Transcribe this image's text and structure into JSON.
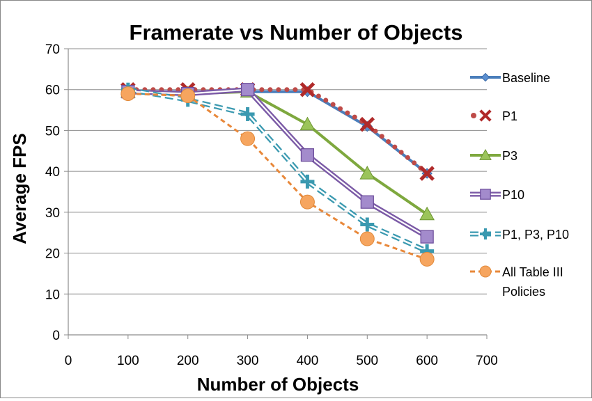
{
  "chart_data": {
    "type": "line",
    "title": "Framerate vs Number of Objects",
    "xlabel": "Number of Objects",
    "ylabel": "Average FPS",
    "xlim": [
      0,
      700
    ],
    "ylim": [
      0,
      70
    ],
    "xticks": [
      0,
      100,
      200,
      300,
      400,
      500,
      600,
      700
    ],
    "yticks": [
      0,
      10,
      20,
      30,
      40,
      50,
      60,
      70
    ],
    "grid": "horizontal",
    "legend": "right",
    "x": [
      100,
      200,
      300,
      400,
      500,
      600
    ],
    "series": [
      {
        "name": "Baseline",
        "values": [
          59.5,
          59.5,
          59.5,
          59.5,
          51.0,
          39.5
        ],
        "color": "#4a7ebb",
        "marker": "diamond",
        "style": "solid"
      },
      {
        "name": "P1",
        "values": [
          60.0,
          60.0,
          60.0,
          60.0,
          51.5,
          39.5
        ],
        "color": "#be4b48",
        "marker": "x",
        "style": "dotted"
      },
      {
        "name": "P3",
        "values": [
          59.5,
          59.0,
          59.5,
          51.5,
          39.5,
          29.5
        ],
        "color": "#7ea83e",
        "marker": "triangle",
        "style": "solid"
      },
      {
        "name": "P10",
        "values": [
          59.5,
          59.0,
          60.0,
          44.0,
          32.5,
          24.0
        ],
        "color": "#7b5aa6",
        "marker": "square",
        "style": "double"
      },
      {
        "name": "P1, P3, P10",
        "values": [
          60.0,
          57.5,
          54.0,
          37.5,
          27.0,
          20.5
        ],
        "color": "#3a99b0",
        "marker": "plus",
        "style": "dashed-double"
      },
      {
        "name": "All Table III Policies",
        "legend_lines": [
          "All Table III",
          "Policies"
        ],
        "values": [
          59.0,
          58.5,
          48.0,
          32.5,
          23.5,
          18.5
        ],
        "color": "#e8883a",
        "marker": "circle",
        "style": "dashed"
      }
    ]
  }
}
